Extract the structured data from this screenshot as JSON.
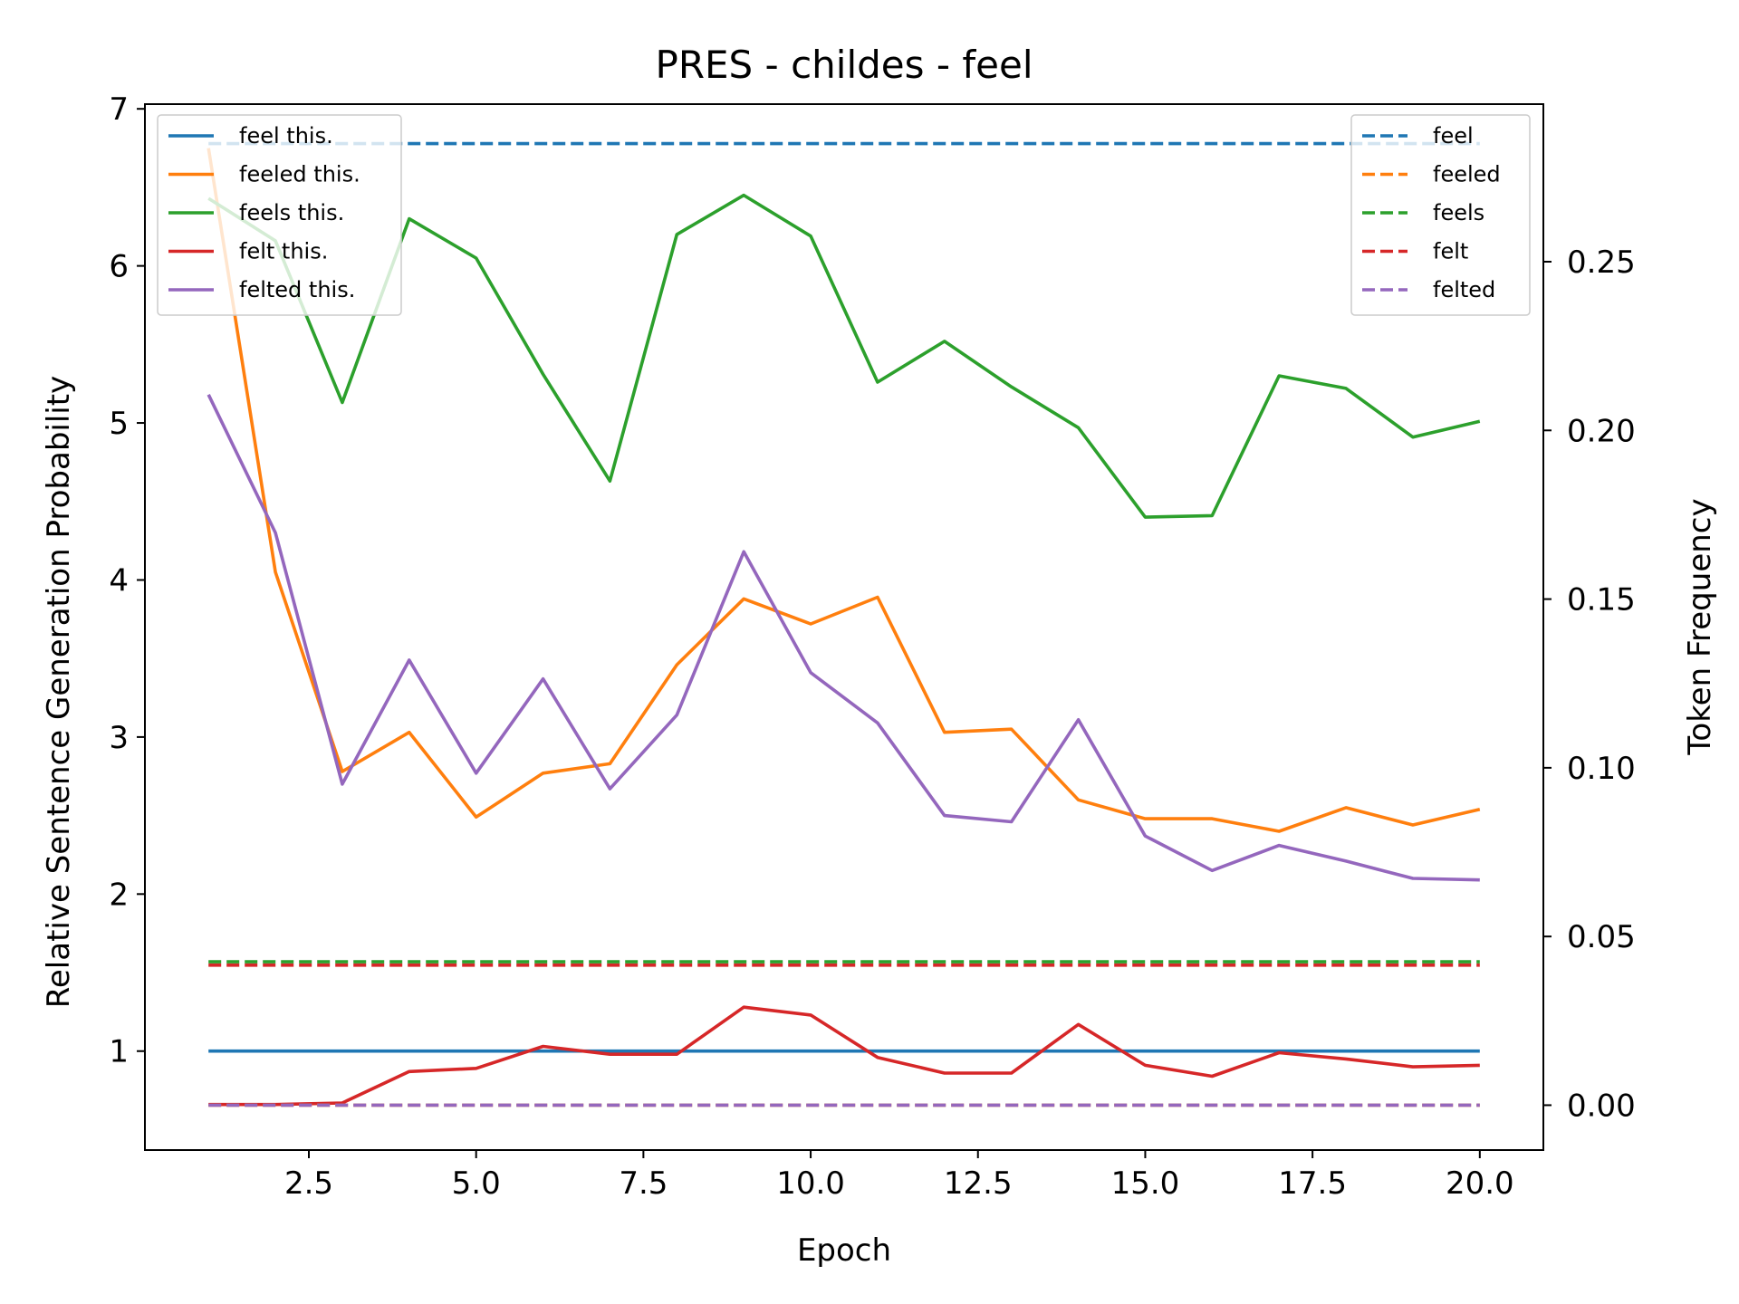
{
  "chart_data": {
    "type": "line",
    "title": "PRES - childes - feel",
    "xlabel": "Epoch",
    "ylabel": "Relative Sentence Generation Probability",
    "ylabel_right": "Token Frequency",
    "xlim": [
      0.05,
      20.95
    ],
    "ylim": [
      0.37,
      7.03
    ],
    "ylim_right": [
      -0.0133,
      0.2967
    ],
    "x_ticks": [
      2.5,
      5.0,
      7.5,
      10.0,
      12.5,
      15.0,
      17.5,
      20.0
    ],
    "x_tick_labels": [
      "2.5",
      "5.0",
      "7.5",
      "10.0",
      "12.5",
      "15.0",
      "17.5",
      "20.0"
    ],
    "y_ticks": [
      1,
      2,
      3,
      4,
      5,
      6,
      7
    ],
    "y_tick_labels": [
      "1",
      "2",
      "3",
      "4",
      "5",
      "6",
      "7"
    ],
    "y_right_ticks": [
      0.0,
      0.05,
      0.1,
      0.15,
      0.2,
      0.25
    ],
    "y_right_tick_labels": [
      "0.00",
      "0.05",
      "0.10",
      "0.15",
      "0.20",
      "0.25"
    ],
    "x": [
      1,
      2,
      3,
      4,
      5,
      6,
      7,
      8,
      9,
      10,
      11,
      12,
      13,
      14,
      15,
      16,
      17,
      18,
      19,
      20
    ],
    "series": [
      {
        "name": "feel this.",
        "color": "#1f77b4",
        "values": [
          1,
          1,
          1,
          1,
          1,
          1,
          1,
          1,
          1,
          1,
          1,
          1,
          1,
          1,
          1,
          1,
          1,
          1,
          1,
          1
        ]
      },
      {
        "name": "feeled this.",
        "color": "#ff7f0e",
        "values": [
          6.75,
          4.05,
          2.78,
          3.03,
          2.49,
          2.77,
          2.83,
          3.46,
          3.88,
          3.72,
          3.89,
          3.03,
          3.05,
          2.6,
          2.48,
          2.48,
          2.4,
          2.55,
          2.44,
          2.54
        ]
      },
      {
        "name": "feels this.",
        "color": "#2ca02c",
        "values": [
          6.43,
          6.16,
          5.13,
          6.3,
          6.05,
          5.31,
          4.63,
          6.2,
          6.45,
          6.19,
          5.26,
          5.52,
          5.23,
          4.97,
          4.4,
          4.41,
          5.3,
          5.22,
          4.91,
          5.01
        ]
      },
      {
        "name": "felt this.",
        "color": "#d62728",
        "values": [
          0.66,
          0.66,
          0.67,
          0.87,
          0.89,
          1.03,
          0.98,
          0.98,
          1.28,
          1.23,
          0.96,
          0.86,
          0.86,
          1.17,
          0.91,
          0.84,
          0.99,
          0.95,
          0.9,
          0.91
        ]
      },
      {
        "name": "felted this.",
        "color": "#9467bd",
        "values": [
          5.18,
          4.3,
          2.7,
          3.49,
          2.77,
          3.37,
          2.67,
          3.14,
          4.18,
          3.41,
          3.09,
          2.5,
          2.46,
          3.11,
          2.37,
          2.15,
          2.31,
          2.21,
          2.1,
          2.09
        ]
      }
    ],
    "series_right": [
      {
        "name": "feel",
        "color": "#1f77b4",
        "values": [
          0.285,
          0.285
        ]
      },
      {
        "name": "feeled",
        "color": "#ff7f0e",
        "values": [
          0.0,
          0.0
        ]
      },
      {
        "name": "feels",
        "color": "#2ca02c",
        "values": [
          0.0425,
          0.0425
        ]
      },
      {
        "name": "felt",
        "color": "#d62728",
        "values": [
          0.0415,
          0.0415
        ]
      },
      {
        "name": "felted",
        "color": "#9467bd",
        "values": [
          0.0,
          0.0
        ]
      }
    ],
    "x_right": [
      1,
      20
    ],
    "legend_left_placement": "top-left",
    "legend_right_placement": "top-right",
    "grid": false
  }
}
